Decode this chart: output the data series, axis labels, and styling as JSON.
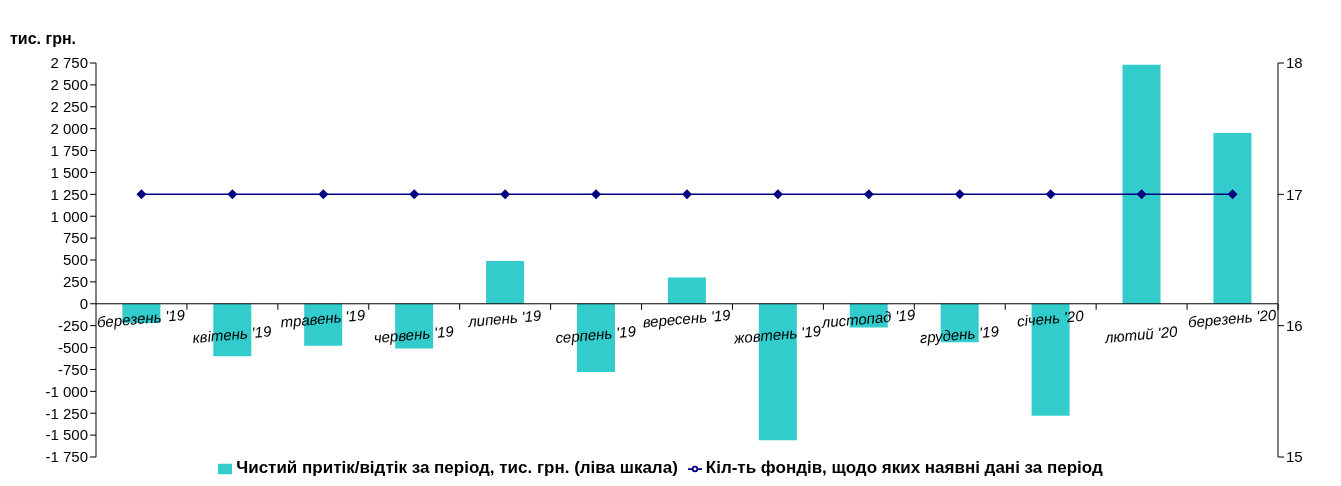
{
  "chart_data": {
    "type": "bar",
    "ylabel": "тис. грн.",
    "categories": [
      "березень '19",
      "квітень '19",
      "травень  '19",
      "червень '19",
      "липень '19",
      "серпень '19",
      "вересень '19",
      "жовтень '19",
      "листопад '19",
      "грудень '19",
      "січень '20",
      "лютий  '20",
      "березень '20"
    ],
    "series": [
      {
        "name": "Чистий притік/відтік за період, тис. грн. (ліва шкала)",
        "color": "#33cccc",
        "values": [
          -220,
          -600,
          -480,
          -510,
          490,
          -780,
          300,
          -1560,
          -270,
          -440,
          -1280,
          2730,
          1950
        ]
      },
      {
        "name": "Кіл-ть фондів, щодо яких наявні дані за період",
        "type": "line",
        "axis": "y2",
        "color": "#000080",
        "marker": "diamond",
        "values": [
          17,
          17,
          17,
          17,
          17,
          17,
          17,
          17,
          17,
          17,
          17,
          17,
          17
        ]
      }
    ],
    "ylim": [
      -1750,
      2750
    ],
    "yticks": [
      {
        "value": -1750,
        "label": "-1 750"
      },
      {
        "value": -1500,
        "label": "-1 500"
      },
      {
        "value": -1250,
        "label": "-1 250"
      },
      {
        "value": -1000,
        "label": "-1 000"
      },
      -750,
      -500,
      -250,
      0,
      250,
      500,
      750,
      {
        "value": 1000,
        "label": "1 000"
      },
      {
        "value": 1250,
        "label": "1 250"
      },
      {
        "value": 1500,
        "label": "1 500"
      },
      {
        "value": 1750,
        "label": "1 750"
      },
      {
        "value": 2000,
        "label": "2 000"
      },
      {
        "value": 2250,
        "label": "2 250"
      },
      {
        "value": 2500,
        "label": "2 500"
      },
      {
        "value": 2750,
        "label": "2 750"
      }
    ],
    "y2lim": [
      15,
      18
    ],
    "y2ticks": [
      15,
      16,
      17,
      18
    ],
    "grid": false,
    "legend": "bottom"
  }
}
